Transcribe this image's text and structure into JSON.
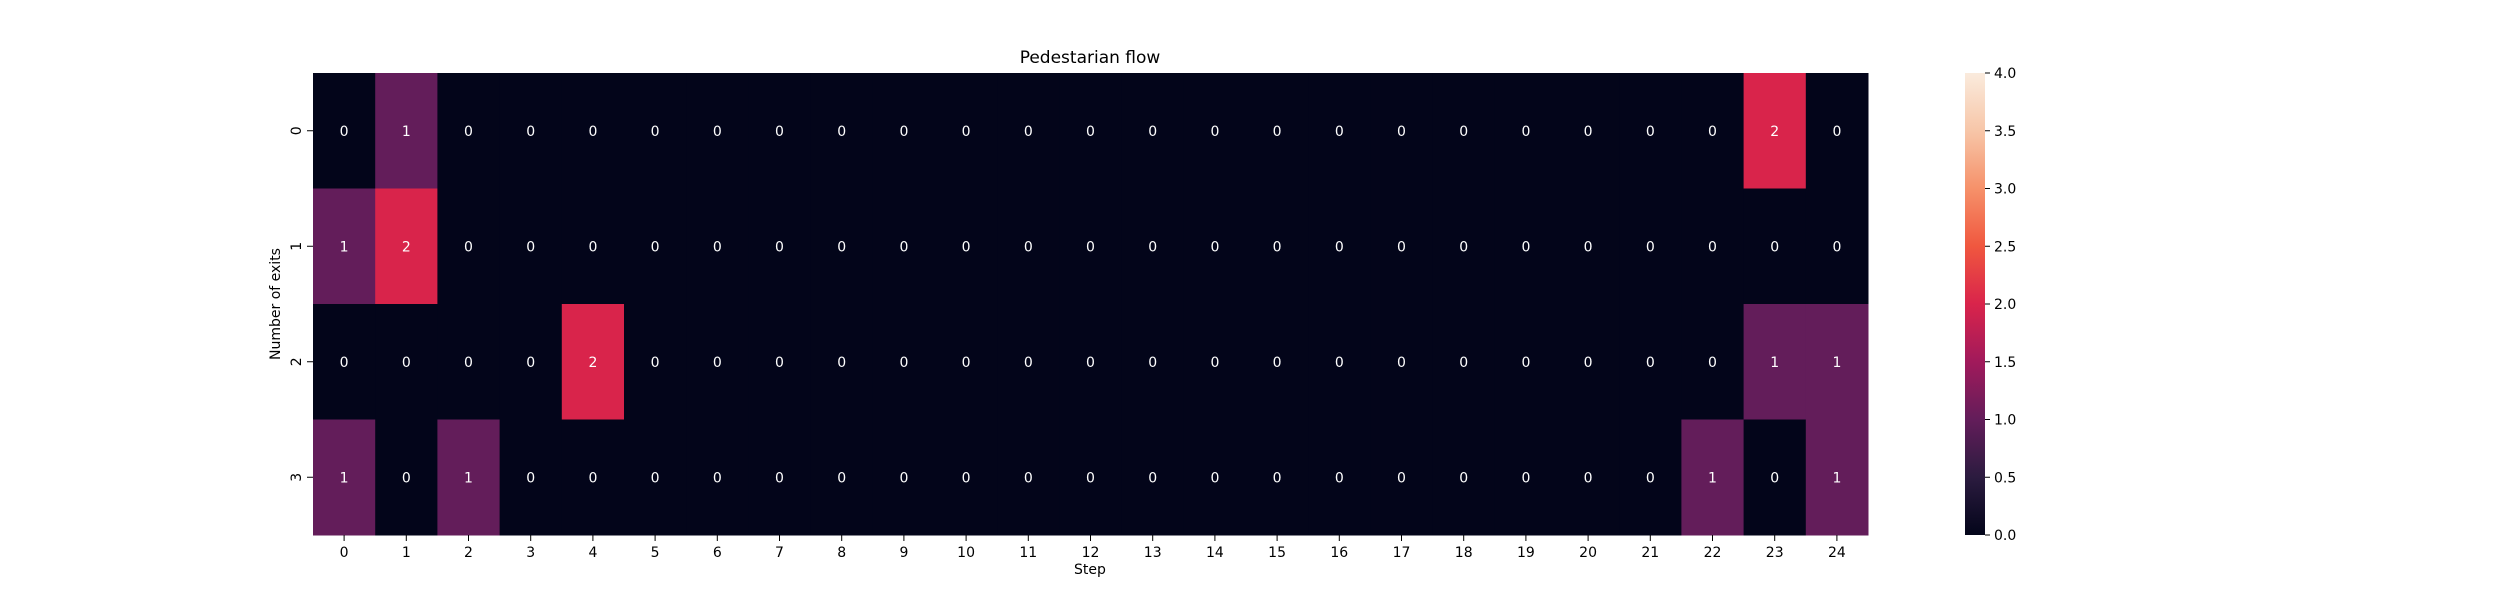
{
  "chart_data": {
    "type": "heatmap",
    "title": "Pedestarian flow",
    "xlabel": "Step",
    "ylabel": "Number of exits",
    "x_categories": [
      "0",
      "1",
      "2",
      "3",
      "4",
      "5",
      "6",
      "7",
      "8",
      "9",
      "10",
      "11",
      "12",
      "13",
      "14",
      "15",
      "16",
      "17",
      "18",
      "19",
      "20",
      "21",
      "22",
      "23",
      "24"
    ],
    "y_categories": [
      "0",
      "1",
      "2",
      "3"
    ],
    "values": [
      [
        0,
        1,
        0,
        0,
        0,
        0,
        0,
        0,
        0,
        0,
        0,
        0,
        0,
        0,
        0,
        0,
        0,
        0,
        0,
        0,
        0,
        0,
        0,
        2,
        0
      ],
      [
        1,
        2,
        0,
        0,
        0,
        0,
        0,
        0,
        0,
        0,
        0,
        0,
        0,
        0,
        0,
        0,
        0,
        0,
        0,
        0,
        0,
        0,
        0,
        0,
        0
      ],
      [
        0,
        0,
        0,
        0,
        2,
        0,
        0,
        0,
        0,
        0,
        0,
        0,
        0,
        0,
        0,
        0,
        0,
        0,
        0,
        0,
        0,
        0,
        0,
        1,
        1
      ],
      [
        1,
        0,
        1,
        0,
        0,
        0,
        0,
        0,
        0,
        0,
        0,
        0,
        0,
        0,
        0,
        0,
        0,
        0,
        0,
        0,
        0,
        0,
        1,
        0,
        1
      ]
    ],
    "colorbar": {
      "min": 0,
      "max": 4,
      "ticks": [
        "0.0",
        "0.5",
        "1.0",
        "1.5",
        "2.0",
        "2.5",
        "3.0",
        "3.5",
        "4.0"
      ],
      "colormap": "rocket"
    },
    "annotations": true,
    "grid": false
  }
}
